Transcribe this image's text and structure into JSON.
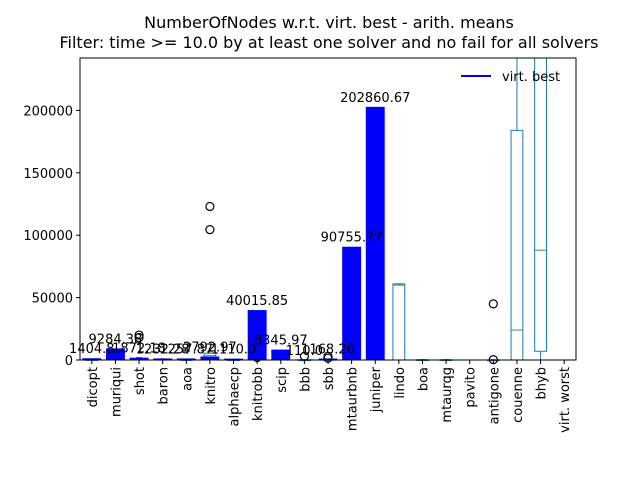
{
  "chart_data": {
    "type": "bar",
    "title": "NumberOfNodes w.r.t. virt. best - arith. means",
    "subtitle": "Filter: time >= 10.0 by at least one solver and no fail for all solvers",
    "xlabel": "",
    "ylabel": "",
    "ylim": [
      0,
      242000
    ],
    "yticks": [
      0,
      50000,
      100000,
      150000,
      200000
    ],
    "ytick_labels": [
      "0",
      "50000",
      "100000",
      "150000",
      "200000"
    ],
    "grid": false,
    "legend": {
      "placement": "top-right",
      "entries": [
        {
          "name": "virt. best",
          "color": "#0000ff"
        }
      ]
    },
    "categories": [
      "dicopt",
      "muriqui",
      "shot",
      "baron",
      "aoa",
      "knitro",
      "alphaecp",
      "knitrobb",
      "scip",
      "bbb",
      "sbb",
      "mtaurbnb",
      "juniper",
      "lindo",
      "boa",
      "mtaurqg",
      "pavito",
      "antigone",
      "couenne",
      "bhyb",
      "virt. worst"
    ],
    "series": [
      {
        "name": "virt. best",
        "color": "#0000ff",
        "values": [
          1404.8,
          9284.38,
          1872.18,
          1232.28,
          1257.87,
          2792.97,
          1110.0,
          40015.85,
          8345.97,
          110.0,
          1168.26,
          90755.77,
          202860.67,
          null,
          null,
          null,
          null,
          null,
          null,
          null,
          null
        ],
        "value_labels": [
          "1404.8",
          "9284.38",
          "1872.18",
          "1232.28",
          "1257.87",
          "2792.97",
          "1110.0",
          "40015.85",
          "8345.97",
          "110.0",
          "1168.26",
          "90755.77",
          "202860.67",
          "",
          "",
          "",
          "",
          "",
          "",
          "",
          ""
        ]
      }
    ],
    "boxplots": [
      {
        "category": "dicopt",
        "q1": 0,
        "median": 50,
        "q3": 300,
        "whisker_low": 0,
        "whisker_high": 600,
        "outliers": []
      },
      {
        "category": "muriqui",
        "q1": 0,
        "median": 100,
        "q3": 800,
        "whisker_low": 0,
        "whisker_high": 1500,
        "outliers": []
      },
      {
        "category": "shot",
        "q1": 0,
        "median": 200,
        "q3": 900,
        "whisker_low": 0,
        "whisker_high": 2000,
        "outliers": [
          18000,
          20000
        ]
      },
      {
        "category": "baron",
        "q1": 0,
        "median": 100,
        "q3": 600,
        "whisker_low": 0,
        "whisker_high": 1000,
        "outliers": []
      },
      {
        "category": "aoa",
        "q1": 0,
        "median": 50,
        "q3": 300,
        "whisker_low": 0,
        "whisker_high": 600,
        "outliers": []
      },
      {
        "category": "knitro",
        "q1": 1500,
        "median": 3500,
        "q3": 5500,
        "whisker_low": 0,
        "whisker_high": 7000,
        "outliers": [
          104500,
          123000
        ]
      },
      {
        "category": "alphaecp",
        "q1": 0,
        "median": 50,
        "q3": 200,
        "whisker_low": 0,
        "whisker_high": 400,
        "outliers": []
      },
      {
        "category": "knitrobb",
        "q1": 0,
        "median": 300,
        "q3": 1200,
        "whisker_low": 0,
        "whisker_high": 2000,
        "outliers": [
          2000
        ]
      },
      {
        "category": "scip",
        "q1": 0,
        "median": 200,
        "q3": 800,
        "whisker_low": 0,
        "whisker_high": 1500,
        "outliers": []
      },
      {
        "category": "bbb",
        "q1": 0,
        "median": 30,
        "q3": 150,
        "whisker_low": 0,
        "whisker_high": 300,
        "outliers": [
          3000
        ]
      },
      {
        "category": "sbb",
        "q1": 0,
        "median": 100,
        "q3": 500,
        "whisker_low": 0,
        "whisker_high": 900,
        "outliers": [
          1500,
          3000
        ]
      },
      {
        "category": "lindo",
        "q1": 0,
        "median": 60000,
        "q3": 61000,
        "whisker_low": 0,
        "whisker_high": 61000,
        "outliers": []
      },
      {
        "category": "boa",
        "q1": 0,
        "median": 50,
        "q3": 200,
        "whisker_low": 0,
        "whisker_high": 400,
        "outliers": []
      },
      {
        "category": "mtaurqg",
        "q1": 0,
        "median": 50,
        "q3": 200,
        "whisker_low": 0,
        "whisker_high": 400,
        "outliers": []
      },
      {
        "category": "antigone",
        "q1": 0,
        "median": 30,
        "q3": 100,
        "whisker_low": 0,
        "whisker_high": 200,
        "outliers": [
          45000,
          300
        ]
      },
      {
        "category": "couenne",
        "q1": 0,
        "median": 24000,
        "q3": 184000,
        "whisker_low": 0,
        "whisker_high": 242000,
        "outliers": []
      },
      {
        "category": "bhyb",
        "q1": 7000,
        "median": 88000,
        "q3": 242000,
        "whisker_low": 0,
        "whisker_high": 242000,
        "outliers": []
      }
    ]
  }
}
